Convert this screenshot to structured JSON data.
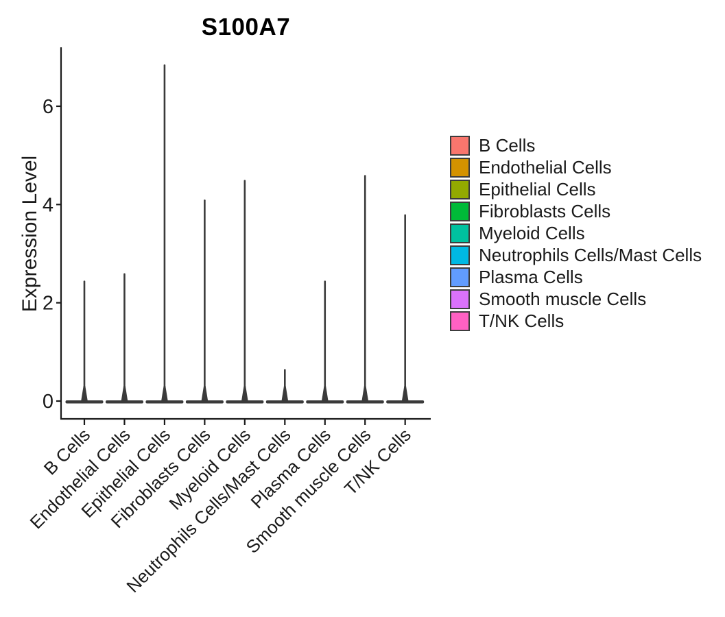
{
  "chart_data": {
    "type": "violin",
    "title": "S100A7",
    "xlabel": "",
    "ylabel": "Expression Level",
    "categories": [
      "B Cells",
      "Endothelial Cells",
      "Epithelial Cells",
      "Fibroblasts Cells",
      "Myeloid Cells",
      "Neutrophils Cells/Mast Cells",
      "Plasma Cells",
      "Smooth muscle Cells",
      "T/NK Cells"
    ],
    "series": [
      {
        "name": "max_expression",
        "values": [
          2.45,
          2.6,
          6.85,
          4.1,
          4.5,
          0.65,
          2.45,
          4.6,
          3.8
        ]
      },
      {
        "name": "bulk_expression_mode",
        "values": [
          0,
          0,
          0,
          0,
          0,
          0,
          0,
          0,
          0
        ]
      }
    ],
    "distribution_note": "Each violin is concentrated at 0 (wide flat base) with a thin spike rising to the max expression value",
    "yticks": [
      0,
      2,
      4,
      6
    ],
    "ylim": [
      -0.35,
      7.2
    ],
    "grid": false,
    "legend_position": "right",
    "axis_color": "#1a1a1a",
    "violin_color": "#3a3a3a"
  },
  "legend": {
    "items": [
      {
        "label": "B Cells",
        "color": "#F8766D"
      },
      {
        "label": "Endothelial Cells",
        "color": "#D39200"
      },
      {
        "label": "Epithelial Cells",
        "color": "#93AA00"
      },
      {
        "label": "Fibroblasts Cells",
        "color": "#00BA38"
      },
      {
        "label": "Myeloid Cells",
        "color": "#00C19F"
      },
      {
        "label": "Neutrophils Cells/Mast Cells",
        "color": "#00B9E3"
      },
      {
        "label": "Plasma Cells",
        "color": "#619CFF"
      },
      {
        "label": "Smooth muscle Cells",
        "color": "#DB72FB"
      },
      {
        "label": "T/NK Cells",
        "color": "#FF61C3"
      }
    ]
  }
}
